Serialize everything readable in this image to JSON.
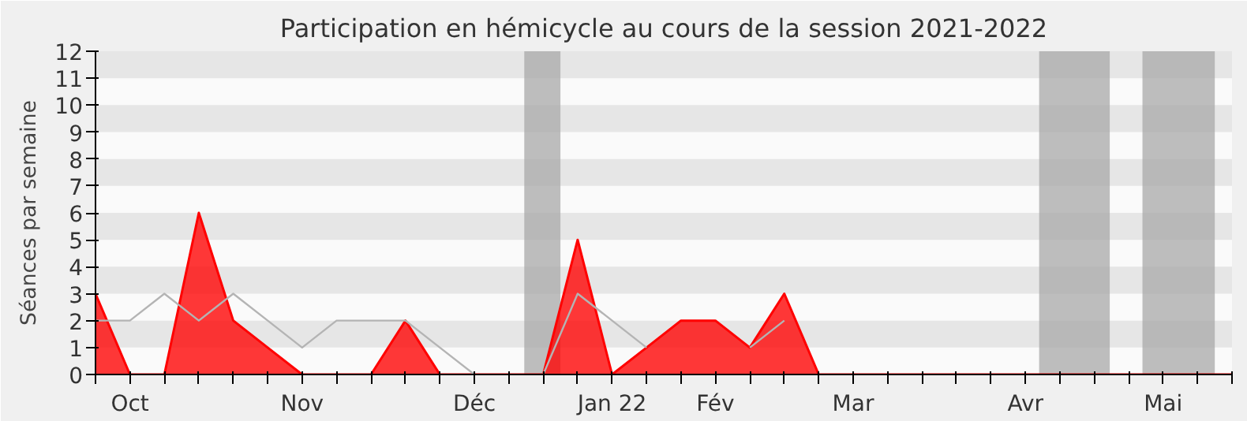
{
  "chart_data": {
    "type": "area",
    "title": "Participation en hémicycle au cours de la session 2021-2022",
    "ylabel": "Séances par semaine",
    "categories": [
      null,
      "Oct",
      null,
      null,
      null,
      null,
      "Nov",
      null,
      null,
      null,
      null,
      "Déc",
      null,
      null,
      null,
      "Jan 22",
      null,
      null,
      "Fév",
      null,
      null,
      null,
      "Mar",
      null,
      null,
      null,
      null,
      "Avr",
      null,
      null,
      null,
      "Mai",
      null,
      null
    ],
    "series": [
      {
        "color": "#ff0000",
        "values": [
          3,
          0,
          0,
          6,
          2,
          1,
          0,
          0,
          0,
          2,
          0,
          0,
          0,
          0,
          5,
          0,
          1,
          2,
          2,
          1,
          3,
          0,
          0,
          0,
          0,
          0,
          0,
          0,
          0,
          0,
          0,
          0,
          0,
          0
        ]
      },
      {
        "type": "line",
        "color": "#b4b4b4",
        "values": [
          2,
          2,
          3,
          2,
          3,
          2,
          1,
          2,
          2,
          2,
          1,
          0,
          null,
          0,
          3,
          2,
          1,
          null,
          null,
          1,
          2,
          null,
          null,
          null,
          null,
          null,
          null,
          null,
          null,
          null,
          null,
          null,
          null,
          null
        ]
      }
    ],
    "ylim": [
      0,
      12
    ],
    "yticks": [
      0,
      1,
      2,
      3,
      4,
      5,
      6,
      7,
      8,
      9,
      10,
      11,
      12
    ]
  }
}
